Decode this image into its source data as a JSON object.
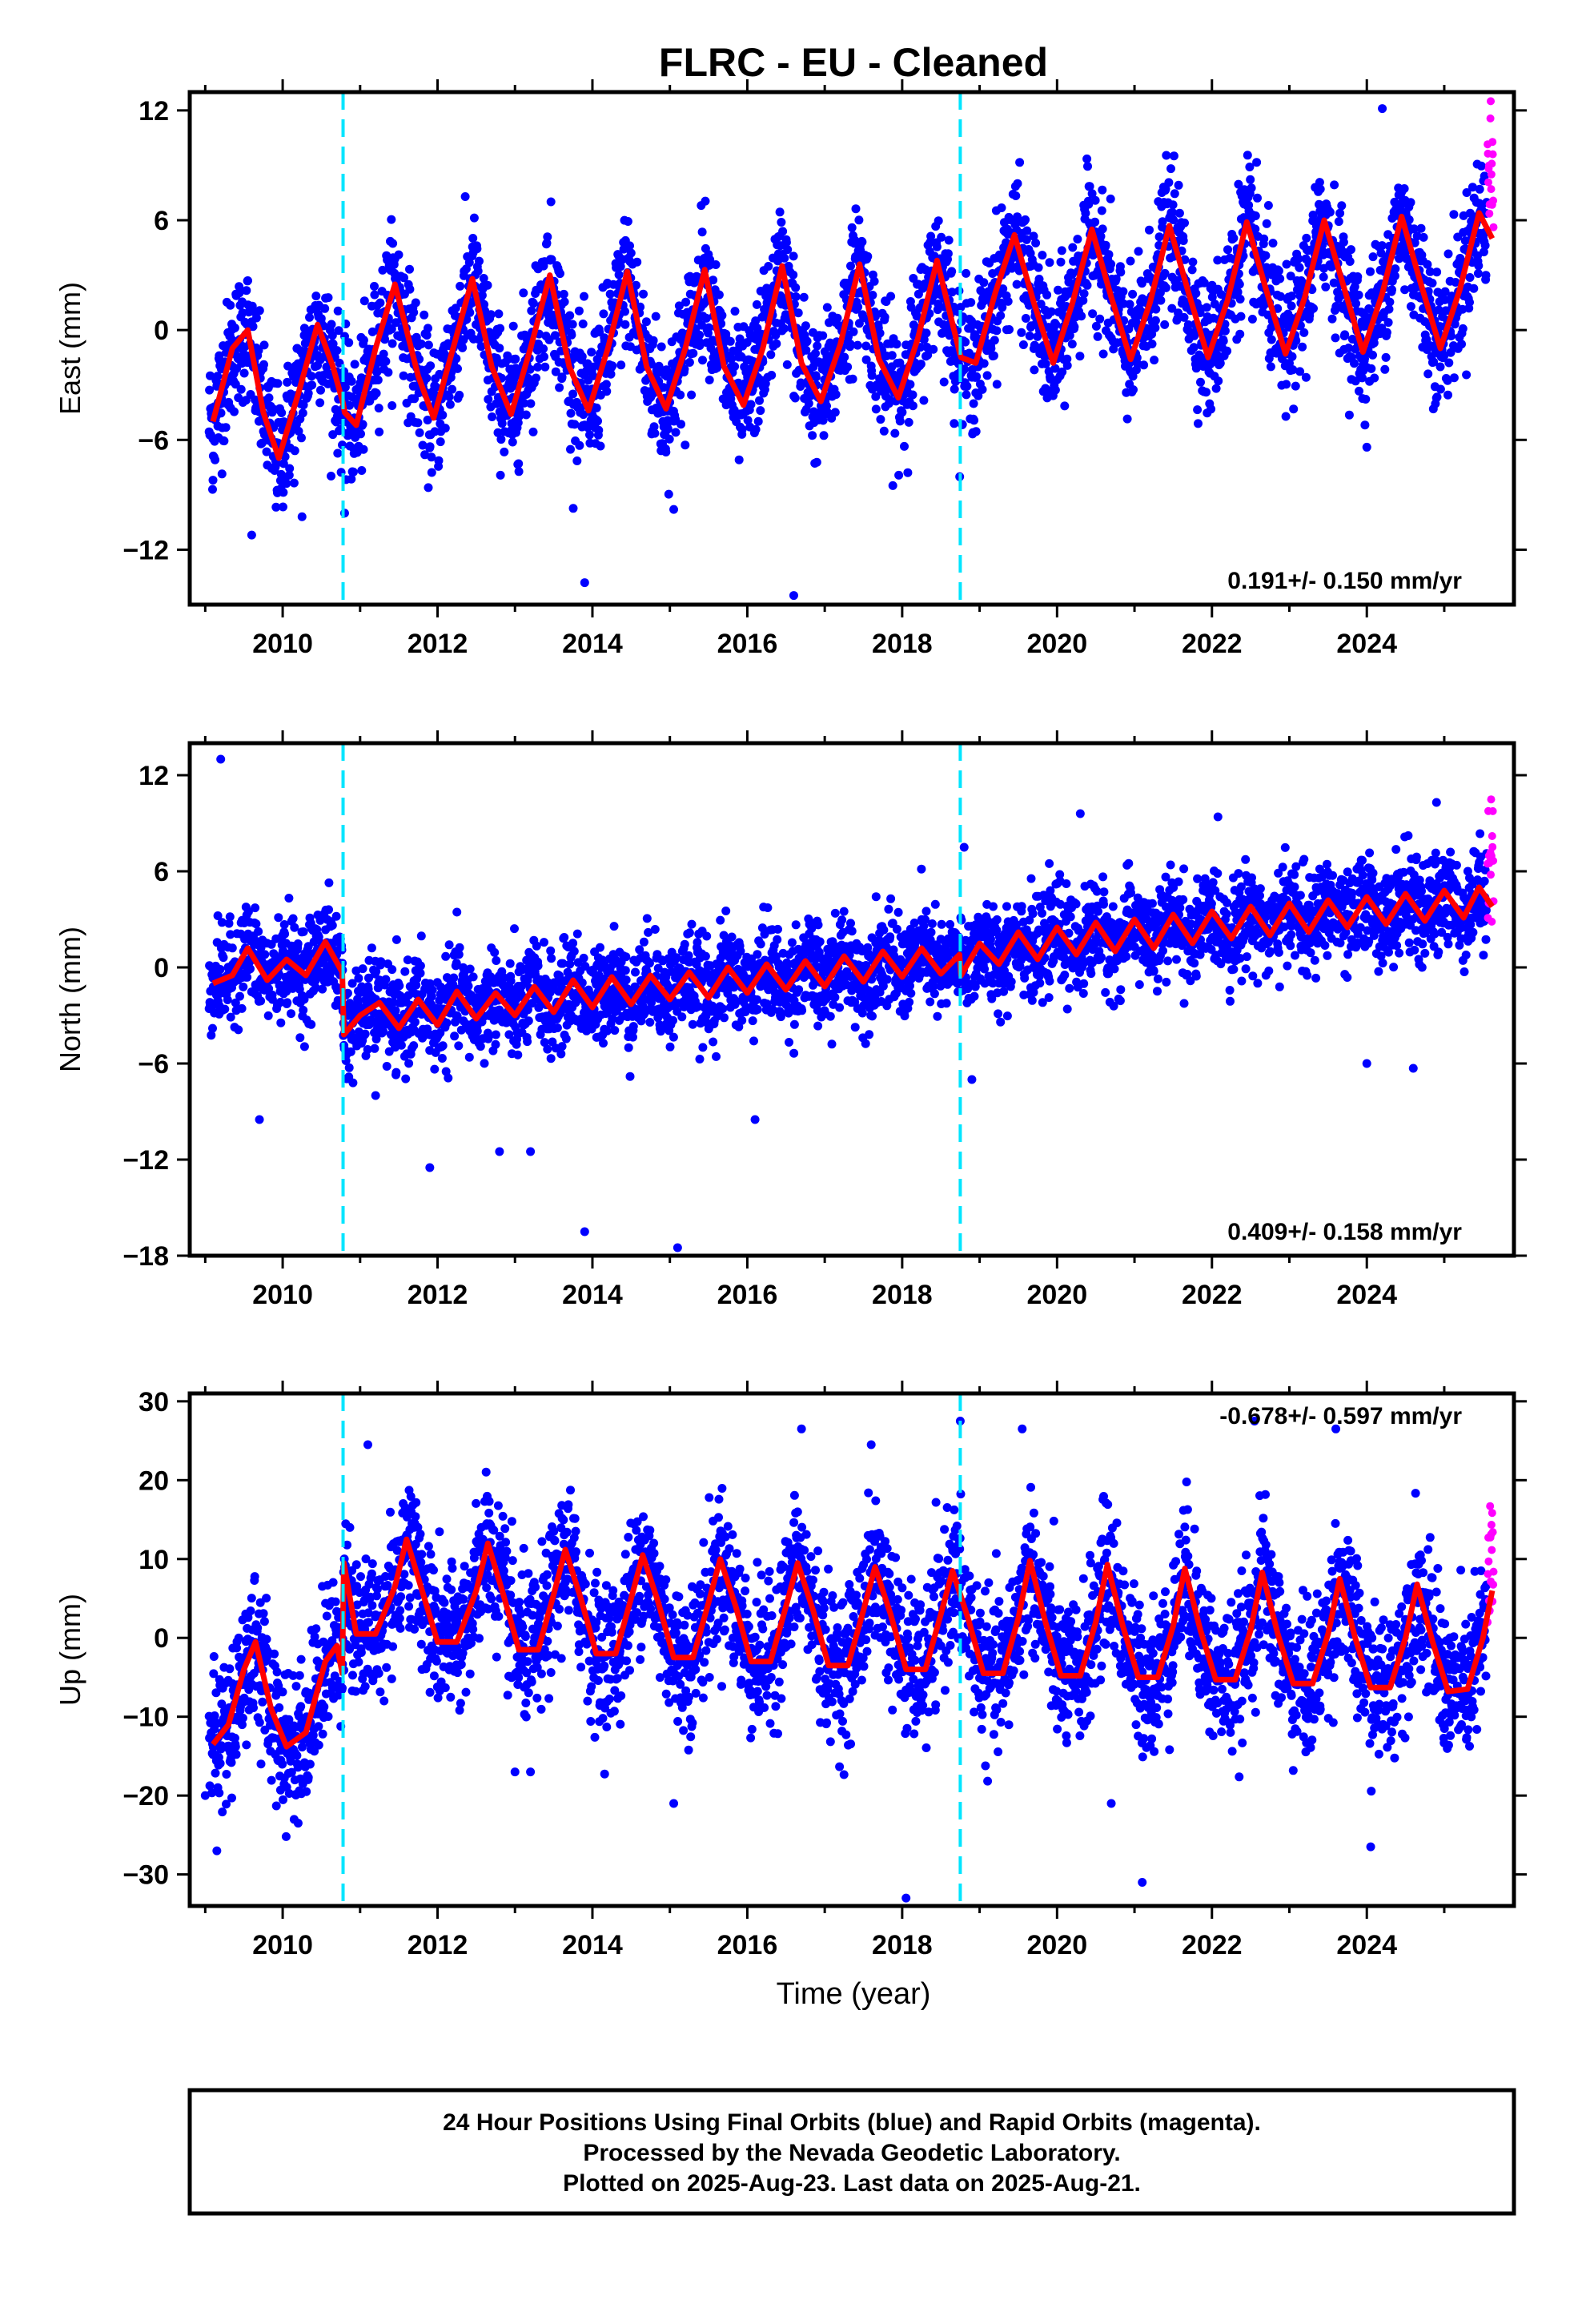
{
  "chart_title": "FLRC  - EU - Cleaned",
  "x_axis_label": "Time (year)",
  "colors": {
    "final": "#0000ff",
    "rapid": "#ff00ff",
    "model": "#ff0000",
    "event": "#00e5ff",
    "frame": "#000000"
  },
  "footer": {
    "line1": "24 Hour Positions Using Final Orbits (blue) and Rapid Orbits (magenta).",
    "line2": "Processed by the Nevada Geodetic Laboratory.",
    "line3": "Plotted on 2025-Aug-23. Last data on 2025-Aug-21."
  },
  "chart_data": [
    {
      "type": "scatter",
      "component": "East",
      "ylabel": "East (mm)",
      "xlim": [
        2008.8,
        2025.9
      ],
      "ylim": [
        -15,
        13
      ],
      "xticks": [
        2010,
        2012,
        2014,
        2016,
        2018,
        2020,
        2022,
        2024
      ],
      "yticks": [
        -12,
        -6,
        0,
        6,
        12
      ],
      "rate_label": "0.191+/- 0.150 mm/yr",
      "rate_position": "bottom-right",
      "event_lines": [
        2010.78,
        2018.75
      ],
      "final_orbit_span": [
        2009.05,
        2025.55
      ],
      "rapid_orbit_span": [
        2025.56,
        2025.64
      ],
      "series": [
        {
          "name": "Final Orbits (blue)",
          "kind": "points"
        },
        {
          "name": "Rapid Orbits (magenta)",
          "kind": "points"
        },
        {
          "kind": "model-fit"
        }
      ],
      "model_curve": [
        [
          2009.1,
          -5.0
        ],
        [
          2009.35,
          -1.0
        ],
        [
          2009.55,
          0.0
        ],
        [
          2009.75,
          -4.5
        ],
        [
          2009.95,
          -7.0
        ],
        [
          2010.2,
          -3.5
        ],
        [
          2010.45,
          0.3
        ],
        [
          2010.65,
          -2.0
        ],
        [
          2010.78,
          -4.0
        ],
        [
          2010.8,
          -4.5
        ],
        [
          2010.95,
          -5.2
        ],
        [
          2011.2,
          -1.0
        ],
        [
          2011.45,
          2.5
        ],
        [
          2011.75,
          -2.5
        ],
        [
          2011.95,
          -4.8
        ],
        [
          2012.2,
          -1.0
        ],
        [
          2012.45,
          2.8
        ],
        [
          2012.7,
          -2.0
        ],
        [
          2012.95,
          -4.6
        ],
        [
          2013.2,
          -1.0
        ],
        [
          2013.45,
          3.0
        ],
        [
          2013.7,
          -2.0
        ],
        [
          2013.95,
          -4.4
        ],
        [
          2014.2,
          -1.0
        ],
        [
          2014.45,
          3.2
        ],
        [
          2014.7,
          -2.0
        ],
        [
          2014.95,
          -4.3
        ],
        [
          2015.2,
          -1.0
        ],
        [
          2015.45,
          3.3
        ],
        [
          2015.7,
          -2.0
        ],
        [
          2015.95,
          -4.1
        ],
        [
          2016.2,
          -1.0
        ],
        [
          2016.45,
          3.5
        ],
        [
          2016.7,
          -1.8
        ],
        [
          2016.95,
          -3.9
        ],
        [
          2017.2,
          -0.8
        ],
        [
          2017.45,
          3.6
        ],
        [
          2017.7,
          -1.6
        ],
        [
          2017.95,
          -3.7
        ],
        [
          2018.2,
          -0.5
        ],
        [
          2018.45,
          3.8
        ],
        [
          2018.74,
          -1.2
        ],
        [
          2018.76,
          -1.5
        ],
        [
          2018.95,
          -1.8
        ],
        [
          2019.2,
          2.0
        ],
        [
          2019.45,
          5.2
        ],
        [
          2019.7,
          1.5
        ],
        [
          2019.95,
          -1.8
        ],
        [
          2020.2,
          1.5
        ],
        [
          2020.45,
          5.5
        ],
        [
          2020.7,
          1.8
        ],
        [
          2020.95,
          -1.6
        ],
        [
          2021.2,
          1.5
        ],
        [
          2021.45,
          5.7
        ],
        [
          2021.7,
          2.0
        ],
        [
          2021.95,
          -1.5
        ],
        [
          2022.2,
          1.6
        ],
        [
          2022.45,
          5.9
        ],
        [
          2022.7,
          2.2
        ],
        [
          2022.95,
          -1.3
        ],
        [
          2023.2,
          1.8
        ],
        [
          2023.45,
          6.0
        ],
        [
          2023.7,
          2.4
        ],
        [
          2023.95,
          -1.2
        ],
        [
          2024.2,
          2.0
        ],
        [
          2024.45,
          6.2
        ],
        [
          2024.7,
          2.5
        ],
        [
          2024.95,
          -1.0
        ],
        [
          2025.2,
          2.2
        ],
        [
          2025.45,
          6.4
        ],
        [
          2025.62,
          5.0
        ]
      ],
      "outliers": [
        [
          2009.6,
          -11.2
        ],
        [
          2010.25,
          -10.2
        ],
        [
          2010.8,
          -10.0
        ],
        [
          2013.9,
          -13.8
        ],
        [
          2015.05,
          -9.8
        ],
        [
          2016.6,
          -14.5
        ],
        [
          2024.0,
          -6.4
        ],
        [
          2024.2,
          12.1
        ],
        [
          2009.1,
          -8.2
        ]
      ]
    },
    {
      "type": "scatter",
      "component": "North",
      "ylabel": "North (mm)",
      "xlim": [
        2008.8,
        2025.9
      ],
      "ylim": [
        -18,
        14
      ],
      "xticks": [
        2010,
        2012,
        2014,
        2016,
        2018,
        2020,
        2022,
        2024
      ],
      "yticks": [
        -18,
        -12,
        -6,
        0,
        6,
        12
      ],
      "rate_label": "0.409+/- 0.158 mm/yr",
      "rate_position": "bottom-right",
      "event_lines": [
        2010.78,
        2018.75
      ],
      "final_orbit_span": [
        2009.05,
        2025.55
      ],
      "rapid_orbit_span": [
        2025.56,
        2025.64
      ],
      "series": [
        {
          "name": "Final Orbits (blue)",
          "kind": "points"
        },
        {
          "name": "Rapid Orbits (magenta)",
          "kind": "points"
        },
        {
          "kind": "model-fit"
        }
      ],
      "model_curve": [
        [
          2009.1,
          -1.0
        ],
        [
          2009.35,
          -0.5
        ],
        [
          2009.55,
          1.2
        ],
        [
          2009.8,
          -0.8
        ],
        [
          2010.05,
          0.5
        ],
        [
          2010.3,
          -0.5
        ],
        [
          2010.55,
          1.6
        ],
        [
          2010.77,
          -0.3
        ],
        [
          2010.79,
          -4.2
        ],
        [
          2011.0,
          -3.0
        ],
        [
          2011.25,
          -2.2
        ],
        [
          2011.5,
          -3.8
        ],
        [
          2011.75,
          -2.0
        ],
        [
          2012.0,
          -3.6
        ],
        [
          2012.25,
          -1.5
        ],
        [
          2012.5,
          -3.2
        ],
        [
          2012.75,
          -1.6
        ],
        [
          2013.0,
          -3.0
        ],
        [
          2013.25,
          -1.2
        ],
        [
          2013.5,
          -2.8
        ],
        [
          2013.75,
          -0.8
        ],
        [
          2014.0,
          -2.5
        ],
        [
          2014.25,
          -0.6
        ],
        [
          2014.5,
          -2.3
        ],
        [
          2014.75,
          -0.5
        ],
        [
          2015.0,
          -2.0
        ],
        [
          2015.25,
          -0.3
        ],
        [
          2015.5,
          -1.9
        ],
        [
          2015.75,
          0.0
        ],
        [
          2016.0,
          -1.6
        ],
        [
          2016.25,
          0.2
        ],
        [
          2016.5,
          -1.4
        ],
        [
          2016.75,
          0.4
        ],
        [
          2017.0,
          -1.2
        ],
        [
          2017.25,
          0.7
        ],
        [
          2017.5,
          -0.9
        ],
        [
          2017.75,
          1.0
        ],
        [
          2018.0,
          -0.6
        ],
        [
          2018.25,
          1.2
        ],
        [
          2018.5,
          -0.4
        ],
        [
          2018.74,
          0.8
        ],
        [
          2018.76,
          -0.5
        ],
        [
          2019.0,
          1.5
        ],
        [
          2019.25,
          0.2
        ],
        [
          2019.5,
          2.2
        ],
        [
          2019.75,
          0.5
        ],
        [
          2020.0,
          2.5
        ],
        [
          2020.25,
          0.8
        ],
        [
          2020.5,
          2.8
        ],
        [
          2020.75,
          1.0
        ],
        [
          2021.0,
          3.0
        ],
        [
          2021.25,
          1.2
        ],
        [
          2021.5,
          3.3
        ],
        [
          2021.75,
          1.5
        ],
        [
          2022.0,
          3.5
        ],
        [
          2022.25,
          1.8
        ],
        [
          2022.5,
          3.8
        ],
        [
          2022.75,
          2.0
        ],
        [
          2023.0,
          4.0
        ],
        [
          2023.25,
          2.2
        ],
        [
          2023.5,
          4.2
        ],
        [
          2023.75,
          2.5
        ],
        [
          2024.0,
          4.4
        ],
        [
          2024.25,
          2.7
        ],
        [
          2024.5,
          4.6
        ],
        [
          2024.75,
          2.9
        ],
        [
          2025.0,
          4.8
        ],
        [
          2025.25,
          3.1
        ],
        [
          2025.45,
          5.0
        ],
        [
          2025.62,
          3.8
        ]
      ],
      "outliers": [
        [
          2009.2,
          13.0
        ],
        [
          2009.7,
          -9.5
        ],
        [
          2011.2,
          -8.0
        ],
        [
          2011.9,
          -12.5
        ],
        [
          2012.8,
          -11.5
        ],
        [
          2013.2,
          -11.5
        ],
        [
          2013.9,
          -16.5
        ],
        [
          2015.1,
          -17.5
        ],
        [
          2016.1,
          -9.5
        ],
        [
          2018.8,
          7.5
        ],
        [
          2020.3,
          9.6
        ],
        [
          2024.0,
          -6.0
        ],
        [
          2024.6,
          -6.3
        ],
        [
          2024.9,
          10.3
        ],
        [
          2018.9,
          -7.0
        ]
      ]
    },
    {
      "type": "scatter",
      "component": "Up",
      "ylabel": "Up (mm)",
      "xlim": [
        2008.8,
        2025.9
      ],
      "ylim": [
        -34,
        31
      ],
      "xticks": [
        2010,
        2012,
        2014,
        2016,
        2018,
        2020,
        2022,
        2024
      ],
      "yticks": [
        -30,
        -20,
        -10,
        0,
        10,
        20,
        30
      ],
      "rate_label": "-0.678+/- 0.597 mm/yr",
      "rate_position": "top-right",
      "event_lines": [
        2010.78,
        2018.75
      ],
      "final_orbit_span": [
        2009.05,
        2025.55
      ],
      "rapid_orbit_span": [
        2025.56,
        2025.64
      ],
      "series": [
        {
          "name": "Final Orbits (blue)",
          "kind": "points"
        },
        {
          "name": "Rapid Orbits (magenta)",
          "kind": "points"
        },
        {
          "kind": "model-fit"
        }
      ],
      "model_curve": [
        [
          2009.1,
          -13.5
        ],
        [
          2009.3,
          -11.0
        ],
        [
          2009.5,
          -4.0
        ],
        [
          2009.65,
          -0.5
        ],
        [
          2009.85,
          -9.0
        ],
        [
          2010.05,
          -13.8
        ],
        [
          2010.3,
          -12.0
        ],
        [
          2010.55,
          -3.0
        ],
        [
          2010.7,
          -1.0
        ],
        [
          2010.77,
          -4.5
        ],
        [
          2010.79,
          9.5
        ],
        [
          2010.95,
          0.5
        ],
        [
          2011.2,
          0.5
        ],
        [
          2011.45,
          6.5
        ],
        [
          2011.6,
          12.5
        ],
        [
          2011.8,
          6.0
        ],
        [
          2012.0,
          -0.5
        ],
        [
          2012.25,
          -0.5
        ],
        [
          2012.5,
          6.0
        ],
        [
          2012.65,
          12.0
        ],
        [
          2012.85,
          5.5
        ],
        [
          2013.05,
          -1.5
        ],
        [
          2013.3,
          -1.5
        ],
        [
          2013.5,
          5.5
        ],
        [
          2013.65,
          11.2
        ],
        [
          2013.85,
          5.0
        ],
        [
          2014.05,
          -2.0
        ],
        [
          2014.3,
          -2.0
        ],
        [
          2014.5,
          5.0
        ],
        [
          2014.65,
          10.5
        ],
        [
          2014.85,
          4.5
        ],
        [
          2015.05,
          -2.5
        ],
        [
          2015.3,
          -2.5
        ],
        [
          2015.5,
          4.5
        ],
        [
          2015.65,
          10.0
        ],
        [
          2015.85,
          4.0
        ],
        [
          2016.05,
          -3.0
        ],
        [
          2016.3,
          -3.0
        ],
        [
          2016.5,
          4.0
        ],
        [
          2016.65,
          9.5
        ],
        [
          2016.85,
          3.5
        ],
        [
          2017.05,
          -3.5
        ],
        [
          2017.3,
          -3.5
        ],
        [
          2017.5,
          3.5
        ],
        [
          2017.65,
          9.0
        ],
        [
          2017.85,
          3.0
        ],
        [
          2018.05,
          -4.0
        ],
        [
          2018.3,
          -4.0
        ],
        [
          2018.5,
          3.0
        ],
        [
          2018.65,
          8.5
        ],
        [
          2018.85,
          2.5
        ],
        [
          2019.05,
          -4.5
        ],
        [
          2019.3,
          -4.5
        ],
        [
          2019.5,
          2.5
        ],
        [
          2019.65,
          9.8
        ],
        [
          2019.85,
          2.0
        ],
        [
          2020.05,
          -4.8
        ],
        [
          2020.3,
          -4.8
        ],
        [
          2020.5,
          2.0
        ],
        [
          2020.65,
          9.3
        ],
        [
          2020.85,
          1.5
        ],
        [
          2021.05,
          -5.0
        ],
        [
          2021.3,
          -5.0
        ],
        [
          2021.5,
          1.5
        ],
        [
          2021.65,
          8.8
        ],
        [
          2021.85,
          1.0
        ],
        [
          2022.05,
          -5.3
        ],
        [
          2022.3,
          -5.3
        ],
        [
          2022.5,
          1.0
        ],
        [
          2022.65,
          8.3
        ],
        [
          2022.85,
          0.5
        ],
        [
          2023.05,
          -5.8
        ],
        [
          2023.3,
          -5.8
        ],
        [
          2023.5,
          0.5
        ],
        [
          2023.65,
          7.5
        ],
        [
          2023.85,
          0.0
        ],
        [
          2024.05,
          -6.3
        ],
        [
          2024.3,
          -6.3
        ],
        [
          2024.5,
          0.0
        ],
        [
          2024.65,
          6.8
        ],
        [
          2024.85,
          -0.5
        ],
        [
          2025.05,
          -6.8
        ],
        [
          2025.3,
          -6.5
        ],
        [
          2025.5,
          0.0
        ],
        [
          2025.62,
          6.0
        ]
      ],
      "outliers": [
        [
          2009.15,
          -27.0
        ],
        [
          2010.2,
          -23.5
        ],
        [
          2011.1,
          24.5
        ],
        [
          2013.0,
          -17.0
        ],
        [
          2013.2,
          -17.0
        ],
        [
          2015.05,
          -21.0
        ],
        [
          2016.7,
          26.5
        ],
        [
          2017.6,
          24.5
        ],
        [
          2018.05,
          -33.0
        ],
        [
          2018.75,
          27.5
        ],
        [
          2019.55,
          26.5
        ],
        [
          2020.7,
          -21.0
        ],
        [
          2021.1,
          -31.0
        ],
        [
          2022.55,
          27.5
        ],
        [
          2023.6,
          26.5
        ],
        [
          2024.05,
          -26.5
        ],
        [
          2009.0,
          -20.0
        ]
      ]
    }
  ]
}
